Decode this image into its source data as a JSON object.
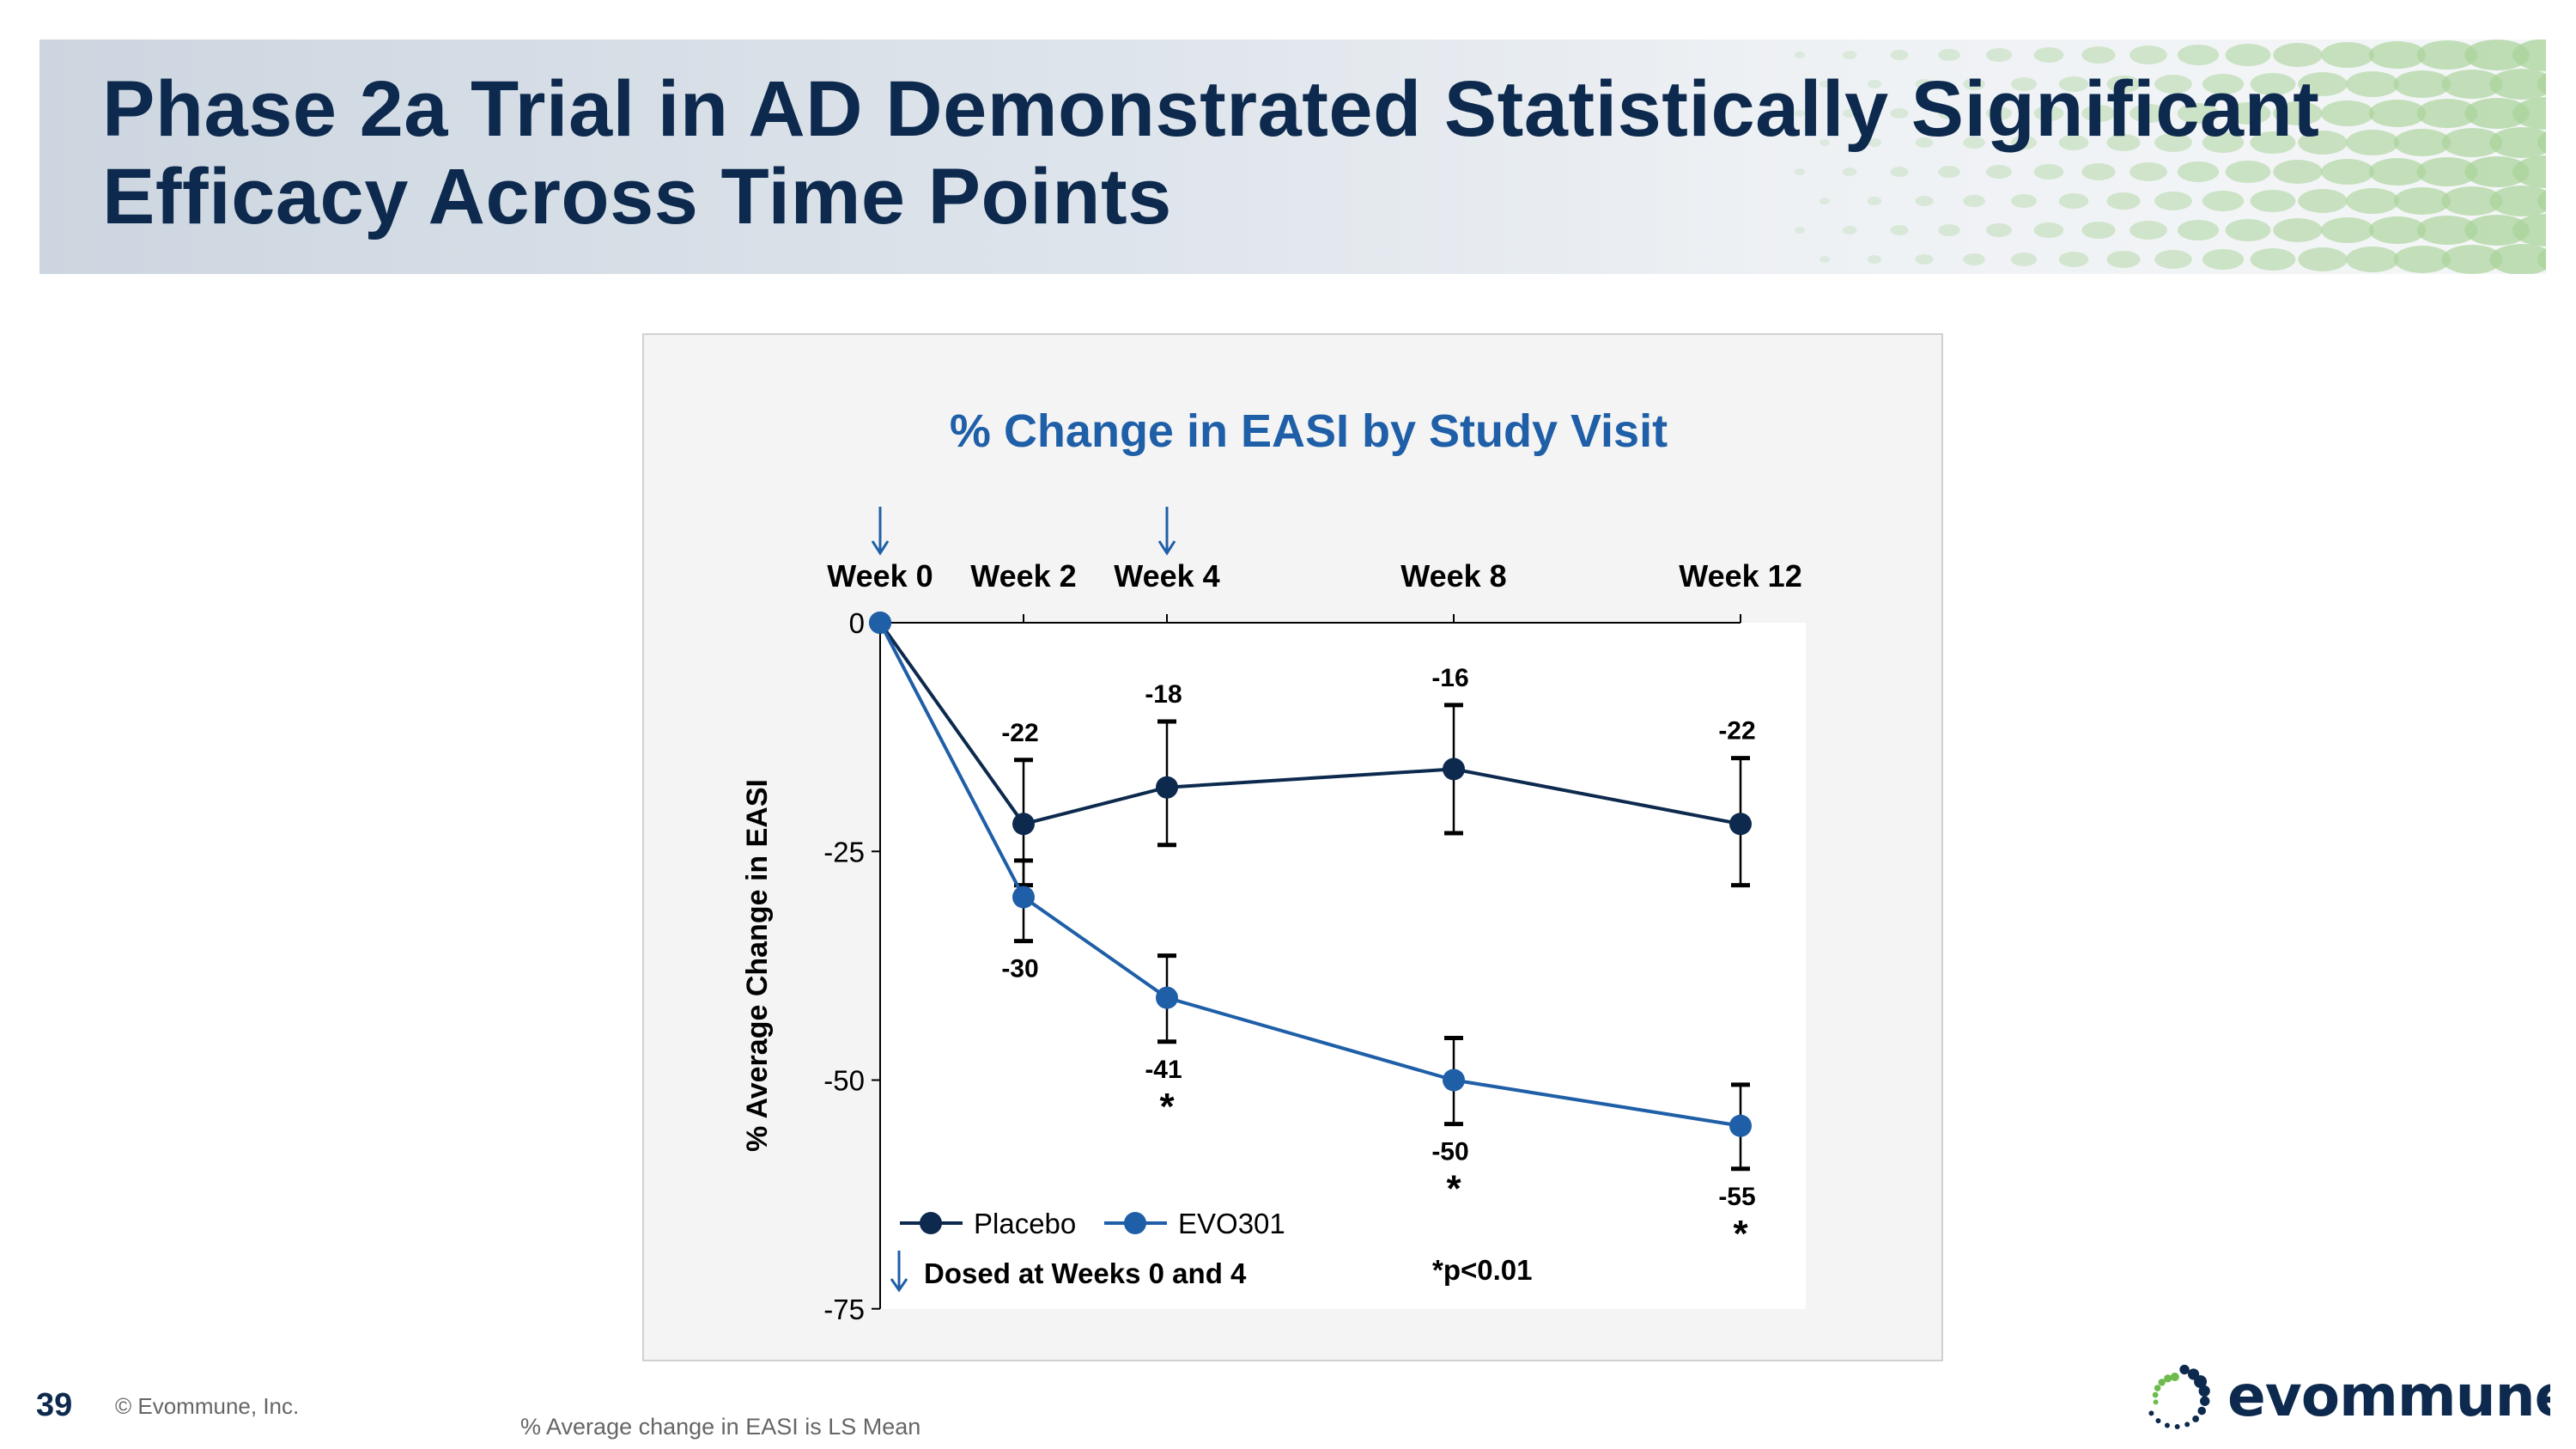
{
  "title": "Phase 2a Trial in AD Demonstrated Statistically Significant Efficacy Across Time Points",
  "title_lines": [
    "Phase 2a Trial in AD Demonstrated Statistically Significant",
    "Efficacy Across Time Points"
  ],
  "footer": {
    "page_number": "39",
    "copyright": "© Evommune, Inc.",
    "footnote": "% Average change in EASI is LS Mean"
  },
  "logo": {
    "text": "evommune"
  },
  "colors": {
    "title": "#0d2a4e",
    "chart_title": "#1f5fa8",
    "placebo": "#0d2a4e",
    "evo301": "#1f5fa8",
    "logo_green": "#6dbb4f"
  },
  "chart_data": {
    "type": "line",
    "title": "% Change in EASI by Study Visit",
    "ylabel": "% Average Change in EASI",
    "xlabel": "",
    "x": [
      0,
      2,
      4,
      8,
      12
    ],
    "x_tick_labels": [
      "Week 0",
      "Week 2",
      "Week 4",
      "Week 8",
      "Week 12"
    ],
    "x_axis_position": "top",
    "ylim": [
      -75,
      0
    ],
    "y_ticks": [
      0,
      -25,
      -50,
      -75
    ],
    "y_tick_labels": [
      "0",
      "-25",
      "-50",
      "-75"
    ],
    "grid": false,
    "legend_position": "bottom-left",
    "series": [
      {
        "name": "Placebo",
        "color": "#0d2a4e",
        "values": [
          0,
          -22,
          -18,
          -16,
          -22
        ],
        "data_labels": [
          "",
          "-22",
          "-18",
          "-16",
          "-22"
        ],
        "error_low": [
          0,
          -28.7,
          -24.3,
          -23,
          -28.7
        ],
        "error_high": [
          0,
          -15,
          -10.8,
          -9,
          -14.8
        ],
        "significant": [
          false,
          false,
          false,
          false,
          false
        ]
      },
      {
        "name": "EVO301",
        "color": "#1f5fa8",
        "values": [
          0,
          -30,
          -41,
          -50,
          -55
        ],
        "data_labels": [
          "",
          "-30",
          "-41",
          "-50",
          "-55"
        ],
        "error_low": [
          0,
          -34.8,
          -45.8,
          -54.8,
          -59.7
        ],
        "error_high": [
          0,
          -26,
          -36.4,
          -45.4,
          -50.5
        ],
        "significant": [
          false,
          false,
          true,
          true,
          true
        ]
      }
    ],
    "dosing_weeks": [
      0,
      4
    ],
    "dosing_note": "Dosed at Weeks 0 and 4",
    "significance_marker": "*",
    "significance_note": "*p<0.01"
  }
}
